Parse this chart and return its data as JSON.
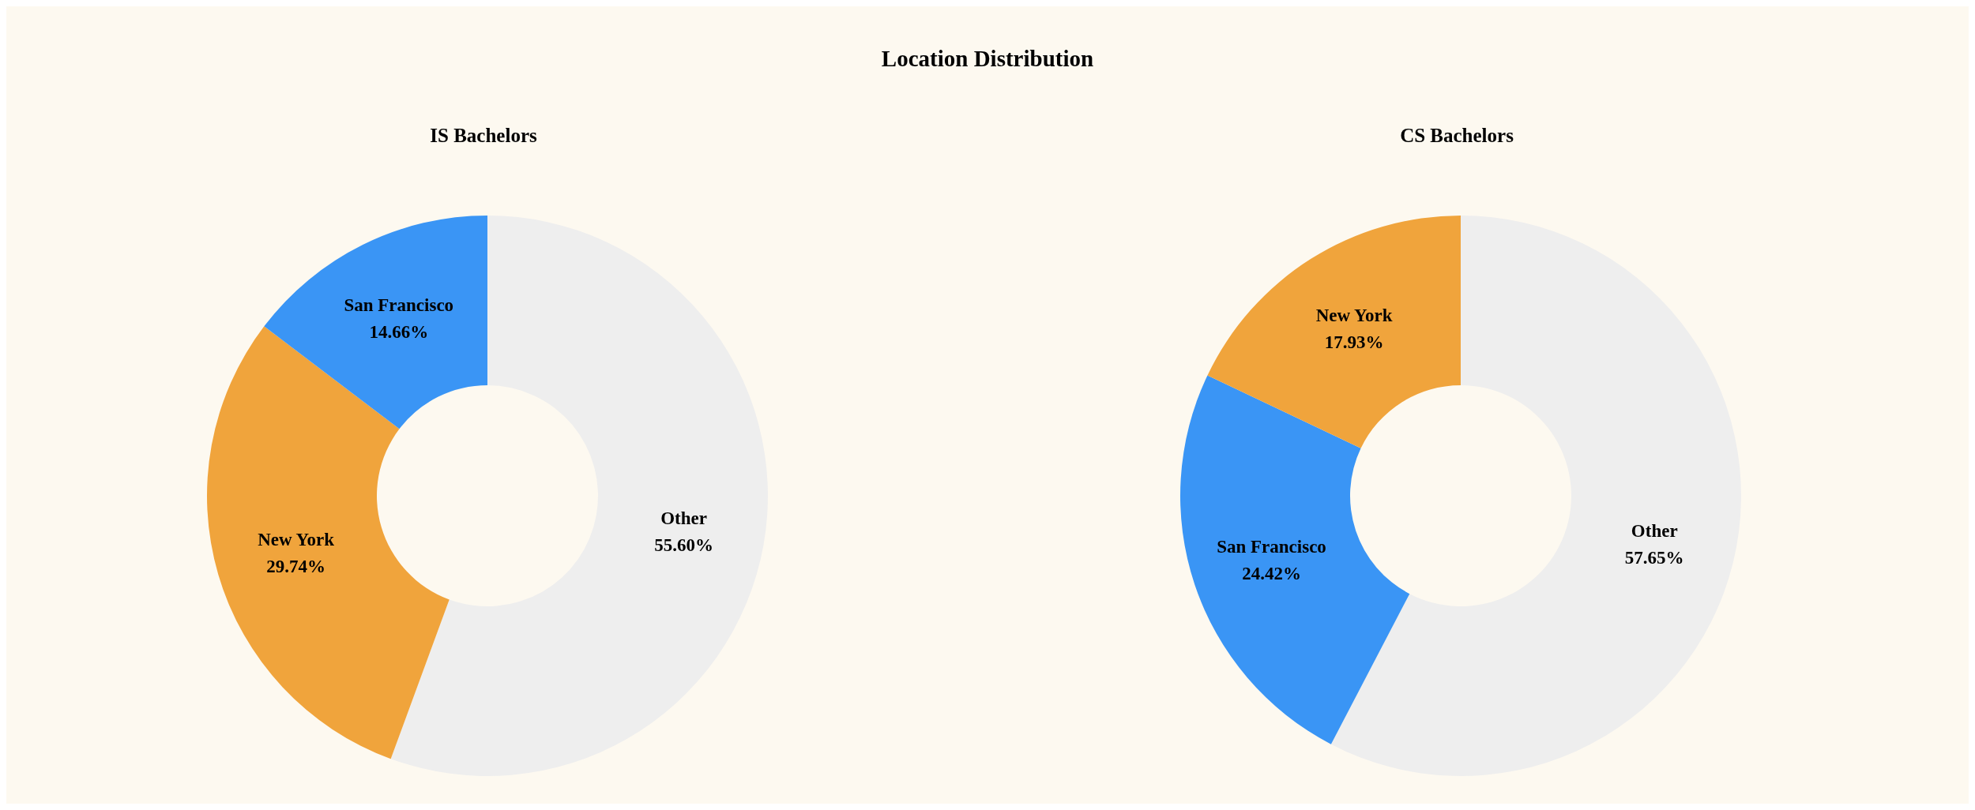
{
  "chart_data": [
    {
      "type": "other",
      "title": "Location Distribution"
    },
    {
      "type": "donut",
      "title": "IS Bachelors",
      "categories": [
        "Other",
        "New York",
        "San Francisco"
      ],
      "values": [
        55.6,
        29.74,
        14.66
      ],
      "value_labels": [
        "55.60%",
        "29.74%",
        "14.66%"
      ],
      "colors": [
        "#eeeeee",
        "#f0a43c",
        "#3a95f5"
      ],
      "legend": false
    },
    {
      "type": "donut",
      "title": "CS Bachelors",
      "categories": [
        "Other",
        "San Francisco",
        "New York"
      ],
      "values": [
        57.65,
        24.42,
        17.93
      ],
      "value_labels": [
        "57.65%",
        "24.42%",
        "17.93%"
      ],
      "colors": [
        "#eeeeee",
        "#3a95f5",
        "#f0a43c"
      ],
      "legend": false
    }
  ]
}
